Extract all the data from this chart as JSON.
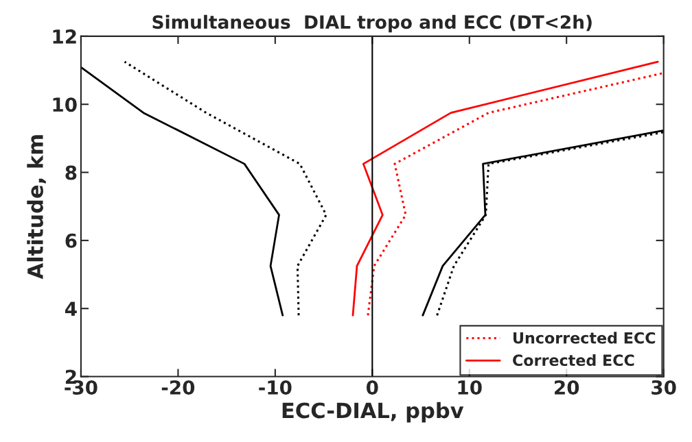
{
  "chart_data": {
    "type": "line",
    "title": "Simultaneous  DIAL tropo and ECC (DT<2h)",
    "xlabel": "ECC-DIAL, ppbv",
    "ylabel": "Altitude, km",
    "xlim": [
      -30,
      30
    ],
    "xticks": [
      -30,
      -20,
      -10,
      0,
      10,
      20,
      30
    ],
    "ylim": [
      2,
      12
    ],
    "yticks": [
      2,
      4,
      6,
      8,
      10,
      12
    ],
    "grid": false,
    "legend": "bottom right",
    "marker": "none",
    "ref_lines": [
      {
        "axis": "x",
        "value": 0,
        "color": "#000000",
        "line_style": "solid"
      }
    ],
    "series": [
      {
        "color": "#000000",
        "line_style": "solid",
        "x": [
          -9.23,
          -10.48,
          -9.6,
          -13.17,
          -23.56,
          -30.0
        ],
        "values": [
          3.8,
          5.25,
          6.75,
          8.25,
          9.75,
          11.09
        ]
      },
      {
        "color": "#000000",
        "line_style": "dotted",
        "x": [
          -7.58,
          -7.7,
          -4.75,
          -7.46,
          -17.1,
          -25.5
        ],
        "values": [
          3.8,
          5.25,
          6.75,
          8.25,
          9.75,
          11.25
        ]
      },
      {
        "name": "Uncorrected ECC",
        "color": "#ff0000",
        "line_style": "dotted",
        "x": [
          -0.45,
          0.19,
          3.44,
          2.31,
          11.97,
          30.0
        ],
        "values": [
          3.8,
          5.25,
          6.75,
          8.25,
          9.75,
          10.92
        ]
      },
      {
        "name": "Corrected ECC",
        "color": "#ff0000",
        "line_style": "solid",
        "x": [
          -2.0,
          -1.58,
          1.06,
          -0.92,
          8.09,
          29.4
        ],
        "values": [
          3.8,
          5.25,
          6.75,
          8.25,
          9.75,
          11.25
        ]
      },
      {
        "color": "#000000",
        "line_style": "solid",
        "x": [
          5.2,
          7.25,
          11.64,
          11.4,
          30.0
        ],
        "values": [
          3.8,
          5.25,
          6.75,
          8.25,
          9.23
        ]
      },
      {
        "color": "#000000",
        "line_style": "dotted",
        "x": [
          6.67,
          8.4,
          11.69,
          11.97,
          30.0
        ],
        "values": [
          3.8,
          5.25,
          6.75,
          8.25,
          9.18
        ]
      }
    ]
  }
}
